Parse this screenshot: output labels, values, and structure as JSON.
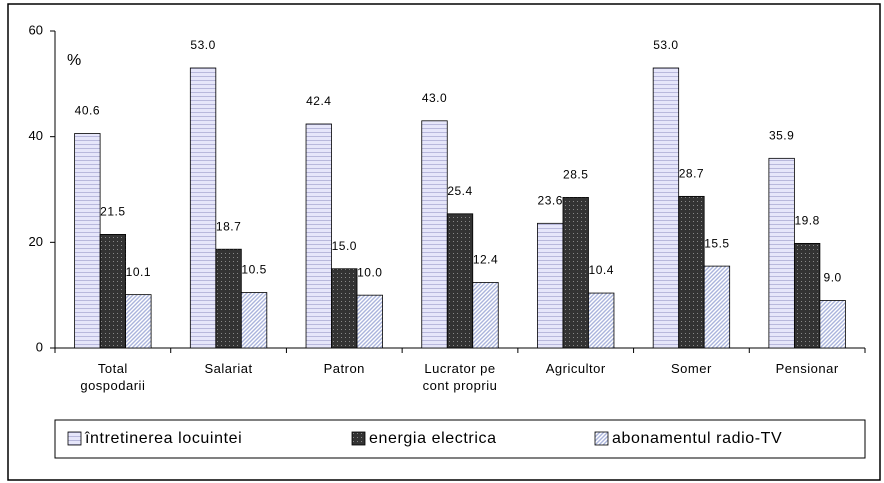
{
  "chart_data": {
    "type": "bar",
    "annotation": "%",
    "categories": [
      "Total gospodarii",
      "Salariat",
      "Patron",
      "Lucrator pe cont propriu",
      "Agricultor",
      "Somer",
      "Pensionar"
    ],
    "series": [
      {
        "name": "întretinerea locuintei",
        "color": "#e6e6fa",
        "values": [
          40.6,
          53.0,
          42.4,
          43.0,
          23.6,
          53.0,
          35.9
        ],
        "value_labels": [
          "40.6",
          "53.0",
          "42.4",
          "43.0",
          "23.6",
          "53.0",
          "35.9"
        ]
      },
      {
        "name": "energia electrica",
        "color": "#333333",
        "values": [
          21.5,
          18.7,
          15.0,
          25.4,
          28.5,
          28.7,
          19.8
        ],
        "value_labels": [
          "21.5",
          "18.7",
          "15.0",
          "25.4",
          "28.5",
          "28.7",
          "19.8"
        ]
      },
      {
        "name": "abonamentul radio-TV",
        "color": "#aab4dc",
        "values": [
          10.1,
          10.5,
          10.0,
          12.4,
          10.4,
          15.5,
          9.0
        ],
        "value_labels": [
          "10.1",
          "10.5",
          "10.0",
          "12.4",
          "10.4",
          "15.5",
          "9.0"
        ]
      }
    ],
    "ylim": [
      0,
      60
    ],
    "yticks": [
      0,
      20,
      40,
      60
    ],
    "grid": false,
    "legend": "bottom"
  }
}
